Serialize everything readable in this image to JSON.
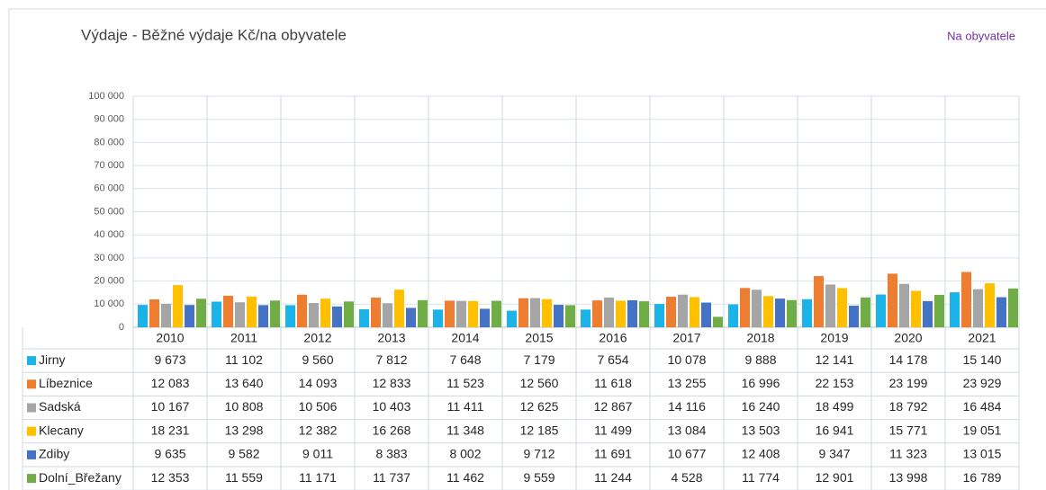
{
  "chart_data": {
    "type": "bar",
    "title": "Výdaje - Běžné výdaje Kč/na obyvatele",
    "annotation": "Na obyvatele",
    "categories": [
      "2010",
      "2011",
      "2012",
      "2013",
      "2014",
      "2015",
      "2016",
      "2017",
      "2018",
      "2019",
      "2020",
      "2021"
    ],
    "series": [
      {
        "name": "Jirny",
        "color": "#1cb4e8",
        "values": [
          9673,
          11102,
          9560,
          7812,
          7648,
          7179,
          7654,
          10078,
          9888,
          12141,
          14178,
          15140
        ],
        "value_labels": [
          "9 673",
          "11 102",
          "9 560",
          "7 812",
          "7 648",
          "7 179",
          "7 654",
          "10 078",
          "9 888",
          "12 141",
          "14 178",
          "15 140"
        ]
      },
      {
        "name": "Líbeznice",
        "color": "#ed7d31",
        "values": [
          12083,
          13640,
          14093,
          12833,
          11523,
          12560,
          11618,
          13255,
          16996,
          22153,
          23199,
          23929
        ],
        "value_labels": [
          "12 083",
          "13 640",
          "14 093",
          "12 833",
          "11 523",
          "12 560",
          "11 618",
          "13 255",
          "16 996",
          "22 153",
          "23 199",
          "23 929"
        ]
      },
      {
        "name": "Sadská",
        "color": "#a5a5a5",
        "values": [
          10167,
          10808,
          10506,
          10403,
          11411,
          12625,
          12867,
          14116,
          16240,
          18499,
          18792,
          16484
        ],
        "value_labels": [
          "10 167",
          "10 808",
          "10 506",
          "10 403",
          "11 411",
          "12 625",
          "12 867",
          "14 116",
          "16 240",
          "18 499",
          "18 792",
          "16 484"
        ]
      },
      {
        "name": "Klecany",
        "color": "#ffc000",
        "values": [
          18231,
          13298,
          12382,
          16268,
          11348,
          12185,
          11499,
          13084,
          13503,
          16941,
          15771,
          19051
        ],
        "value_labels": [
          "18 231",
          "13 298",
          "12 382",
          "16 268",
          "11 348",
          "12 185",
          "11 499",
          "13 084",
          "13 503",
          "16 941",
          "15 771",
          "19 051"
        ]
      },
      {
        "name": "Zdiby",
        "color": "#4472c4",
        "values": [
          9635,
          9582,
          9011,
          8383,
          8002,
          9712,
          11691,
          10677,
          12408,
          9347,
          11323,
          13015
        ],
        "value_labels": [
          "9 635",
          "9 582",
          "9 011",
          "8 383",
          "8 002",
          "9 712",
          "11 691",
          "10 677",
          "12 408",
          "9 347",
          "11 323",
          "13 015"
        ]
      },
      {
        "name": "Dolní_Břežany",
        "color": "#70ad47",
        "values": [
          12353,
          11559,
          11171,
          11737,
          11462,
          9559,
          11244,
          4528,
          11774,
          12901,
          13998,
          16789
        ],
        "value_labels": [
          "12 353",
          "11 559",
          "11 171",
          "11 737",
          "11 462",
          "9 559",
          "11 244",
          "4 528",
          "11 774",
          "12 901",
          "13 998",
          "16 789"
        ]
      }
    ],
    "ylim": [
      0,
      100000
    ],
    "yticks": [
      0,
      {
        "value": 10000,
        "label": "10 000"
      },
      {
        "value": 20000,
        "label": "20 000"
      },
      {
        "value": 30000,
        "label": "30 000"
      },
      {
        "value": 40000,
        "label": "40 000"
      },
      {
        "value": 50000,
        "label": "50 000"
      },
      {
        "value": 60000,
        "label": "60 000"
      },
      {
        "value": 70000,
        "label": "70 000"
      },
      {
        "value": 80000,
        "label": "80 000"
      },
      {
        "value": 90000,
        "label": "90 000"
      },
      {
        "value": 100000,
        "label": "100 000"
      }
    ],
    "grid": true,
    "annotation_color": "#7030a0"
  }
}
